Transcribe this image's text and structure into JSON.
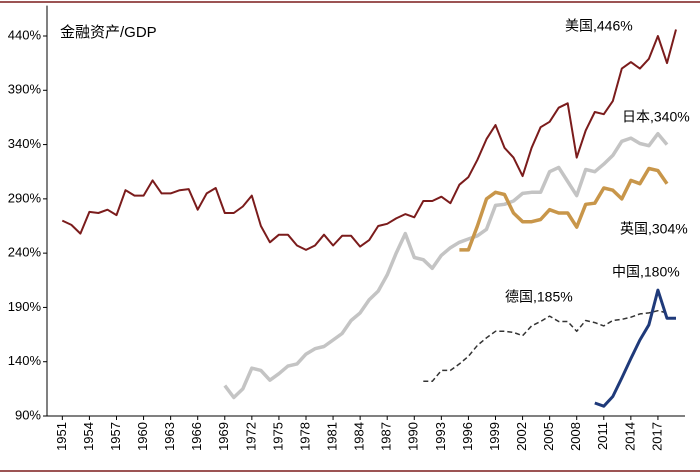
{
  "chart_data": {
    "type": "line",
    "title": "金融资产/GDP",
    "x": [
      1951,
      1952,
      1953,
      1954,
      1955,
      1956,
      1957,
      1958,
      1959,
      1960,
      1961,
      1962,
      1963,
      1964,
      1965,
      1966,
      1967,
      1968,
      1969,
      1970,
      1971,
      1972,
      1973,
      1974,
      1975,
      1976,
      1977,
      1978,
      1979,
      1980,
      1981,
      1982,
      1983,
      1984,
      1985,
      1986,
      1987,
      1988,
      1989,
      1990,
      1991,
      1992,
      1993,
      1994,
      1995,
      1996,
      1997,
      1998,
      1999,
      2000,
      2001,
      2002,
      2003,
      2004,
      2005,
      2006,
      2007,
      2008,
      2009,
      2010,
      2011,
      2012,
      2013,
      2014,
      2015,
      2016,
      2017,
      2018,
      2019
    ],
    "series": [
      {
        "name": "美国",
        "label": "美国,446%",
        "color": "#7b1c1c",
        "width": 2,
        "dash": false,
        "values": [
          270,
          266,
          258,
          278,
          277,
          280,
          275,
          298,
          293,
          293,
          307,
          295,
          295,
          298,
          299,
          280,
          295,
          300,
          277,
          277,
          283,
          293,
          265,
          250,
          257,
          257,
          247,
          243,
          247,
          257,
          247,
          256,
          256,
          246,
          252,
          265,
          267,
          272,
          276,
          273,
          288,
          288,
          292,
          286,
          303,
          310,
          326,
          345,
          358,
          337,
          328,
          311,
          337,
          356,
          361,
          374,
          378,
          328,
          353,
          370,
          368,
          380,
          410,
          416,
          410,
          419,
          440,
          415,
          446
        ]
      },
      {
        "name": "日本",
        "label": "日本,340%",
        "color": "#c4c4c4",
        "width": 3.5,
        "dash": false,
        "values": [
          null,
          null,
          null,
          null,
          null,
          null,
          null,
          null,
          null,
          null,
          null,
          null,
          null,
          null,
          null,
          null,
          null,
          null,
          118,
          107,
          115,
          134,
          132,
          123,
          129,
          136,
          138,
          147,
          152,
          154,
          160,
          166,
          178,
          185,
          197,
          205,
          220,
          240,
          258,
          236,
          234,
          226,
          238,
          245,
          250,
          253,
          256,
          262,
          284,
          285,
          288,
          295,
          296,
          296,
          315,
          319,
          306,
          293,
          317,
          315,
          322,
          330,
          343,
          346,
          341,
          339,
          350,
          340,
          null
        ]
      },
      {
        "name": "英国",
        "label": "英国,304%",
        "color": "#c8964a",
        "width": 3.5,
        "dash": false,
        "values": [
          null,
          null,
          null,
          null,
          null,
          null,
          null,
          null,
          null,
          null,
          null,
          null,
          null,
          null,
          null,
          null,
          null,
          null,
          null,
          null,
          null,
          null,
          null,
          null,
          null,
          null,
          null,
          null,
          null,
          null,
          null,
          null,
          null,
          null,
          null,
          null,
          null,
          null,
          null,
          null,
          null,
          null,
          null,
          null,
          243,
          243,
          265,
          290,
          296,
          294,
          277,
          269,
          269,
          271,
          280,
          277,
          277,
          264,
          285,
          286,
          300,
          298,
          290,
          307,
          304,
          318,
          316,
          304,
          null
        ]
      },
      {
        "name": "德国",
        "label": "德国,185%",
        "color": "#333333",
        "width": 1.5,
        "dash": true,
        "values": [
          null,
          null,
          null,
          null,
          null,
          null,
          null,
          null,
          null,
          null,
          null,
          null,
          null,
          null,
          null,
          null,
          null,
          null,
          null,
          null,
          null,
          null,
          null,
          null,
          null,
          null,
          null,
          null,
          null,
          null,
          null,
          null,
          null,
          null,
          null,
          null,
          null,
          null,
          null,
          null,
          122,
          122,
          132,
          132,
          138,
          145,
          155,
          162,
          168,
          168,
          167,
          164,
          173,
          177,
          182,
          177,
          177,
          168,
          178,
          176,
          173,
          178,
          179,
          181,
          184,
          185,
          187,
          185,
          null
        ]
      },
      {
        "name": "中国",
        "label": "中国,180%",
        "color": "#1f3a7a",
        "width": 3,
        "dash": false,
        "values": [
          null,
          null,
          null,
          null,
          null,
          null,
          null,
          null,
          null,
          null,
          null,
          null,
          null,
          null,
          null,
          null,
          null,
          null,
          null,
          null,
          null,
          null,
          null,
          null,
          null,
          null,
          null,
          null,
          null,
          null,
          null,
          null,
          null,
          null,
          null,
          null,
          null,
          null,
          null,
          null,
          null,
          null,
          null,
          null,
          null,
          null,
          null,
          null,
          null,
          null,
          null,
          null,
          null,
          null,
          null,
          null,
          null,
          null,
          null,
          102,
          99,
          108,
          125,
          143,
          160,
          174,
          206,
          180,
          180
        ]
      }
    ],
    "xlim": [
      1949.3,
      2020
    ],
    "xticks": [
      1951,
      1954,
      1957,
      1960,
      1963,
      1966,
      1969,
      1972,
      1975,
      1978,
      1981,
      1984,
      1987,
      1990,
      1993,
      1996,
      1999,
      2002,
      2005,
      2008,
      2011,
      2014,
      2017
    ],
    "ylim": [
      90,
      468
    ],
    "yticks": [
      {
        "value": 90,
        "label": "90%"
      },
      {
        "value": 140,
        "label": "140%"
      },
      {
        "value": 190,
        "label": "190%"
      },
      {
        "value": 240,
        "label": "240%"
      },
      {
        "value": 290,
        "label": "290%"
      },
      {
        "value": 340,
        "label": "340%"
      },
      {
        "value": 390,
        "label": "390%"
      },
      {
        "value": 440,
        "label": "440%"
      }
    ],
    "grid": false
  }
}
